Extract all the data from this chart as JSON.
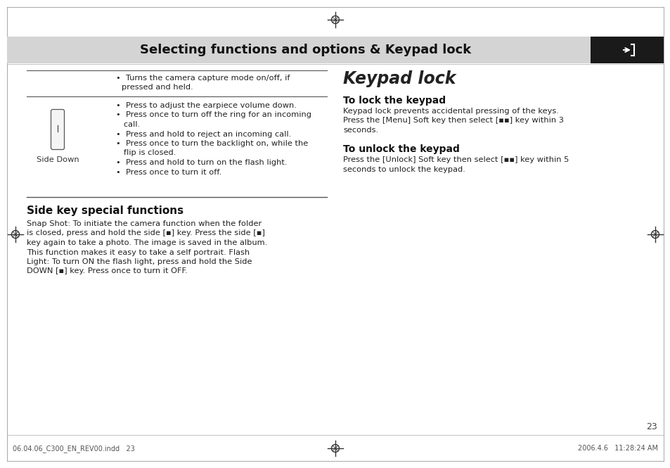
{
  "bg_color": "#ffffff",
  "header_bg": "#d4d4d4",
  "header_text": "Selecting functions and options & Keypad lock",
  "header_icon_bg": "#1a1a1a",
  "footer_left": "06.04.06_C300_EN_REV00.indd   23",
  "footer_right": "2006.4.6   11:28:24 AM",
  "page_num": "23",
  "bullet1_line1": "•  Turns the camera capture mode on/off, if",
  "bullet1_line2": "   pressed and held.",
  "bullets_sd": [
    "•  Press to adjust the earpiece volume down.",
    "•  Press once to turn off the ring for an incoming",
    "   call.",
    "•  Press and hold to reject an incoming call.",
    "•  Press once to turn the backlight on, while the",
    "   flip is closed.",
    "•  Press and hold to turn on the flash light.",
    "•  Press once to turn it off."
  ],
  "side_key_title": "Side key special functions",
  "side_key_body": [
    "Snap Shot: To initiate the camera function when the folder",
    "is closed, press and hold the side [▪] key. Press the side [▪]",
    "key again to take a photo. The image is saved in the album.",
    "This function makes it easy to take a self portrait. Flash",
    "Light: To turn ON the flash light, press and hold the Side",
    "DOWN [▪] key. Press once to turn it OFF."
  ],
  "kp_title": "Keypad lock",
  "lock_title": "To lock the keypad",
  "lock_body": [
    "Keypad lock prevents accidental pressing of the keys.",
    "Press the [Menu] Soft key then select [▪▪] key within 3",
    "seconds."
  ],
  "unlock_title": "To unlock the keypad",
  "unlock_body": [
    "Press the [Unlock] Soft key then select [▪▪] key within 5",
    "seconds to unlock the keypad."
  ]
}
